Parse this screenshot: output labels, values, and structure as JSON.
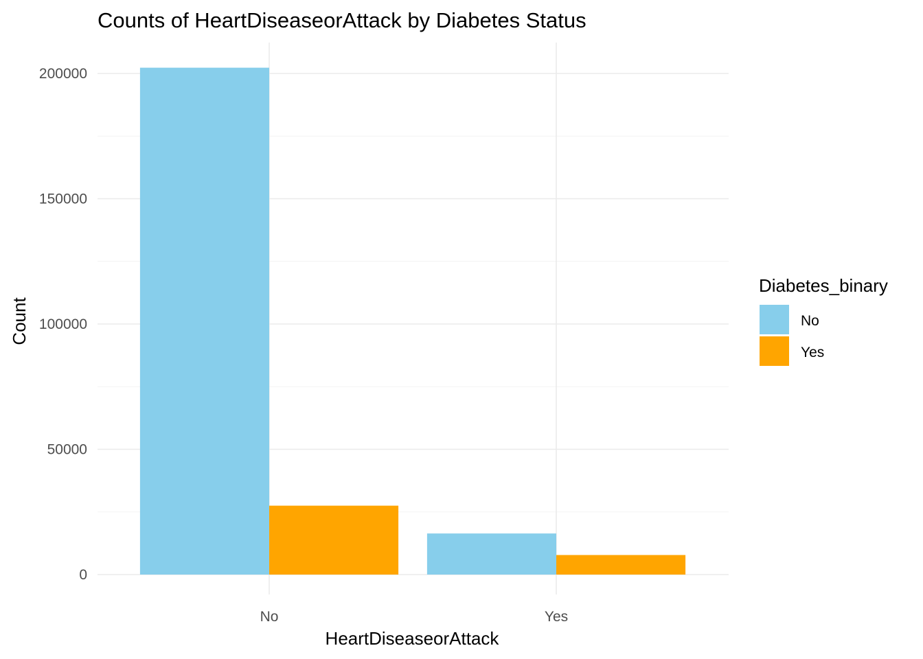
{
  "chart_data": {
    "type": "bar",
    "title": "Counts of HeartDiseaseorAttack by Diabetes Status",
    "xlabel": "HeartDiseaseorAttack",
    "ylabel": "Count",
    "categories": [
      "No",
      "Yes"
    ],
    "series": [
      {
        "name": "No",
        "color": "#87CEEB",
        "values": [
          202300,
          16400
        ]
      },
      {
        "name": "Yes",
        "color": "#FFA500",
        "values": [
          27500,
          7800
        ]
      }
    ],
    "ylim": [
      0,
      210000
    ],
    "yticks": [
      0,
      50000,
      100000,
      150000,
      200000
    ],
    "ytick_labels": [
      "0",
      "50000",
      "100000",
      "150000",
      "200000"
    ],
    "legend": {
      "title": "Diabetes_binary",
      "position": "right"
    },
    "grid": true,
    "theme": "minimal"
  }
}
